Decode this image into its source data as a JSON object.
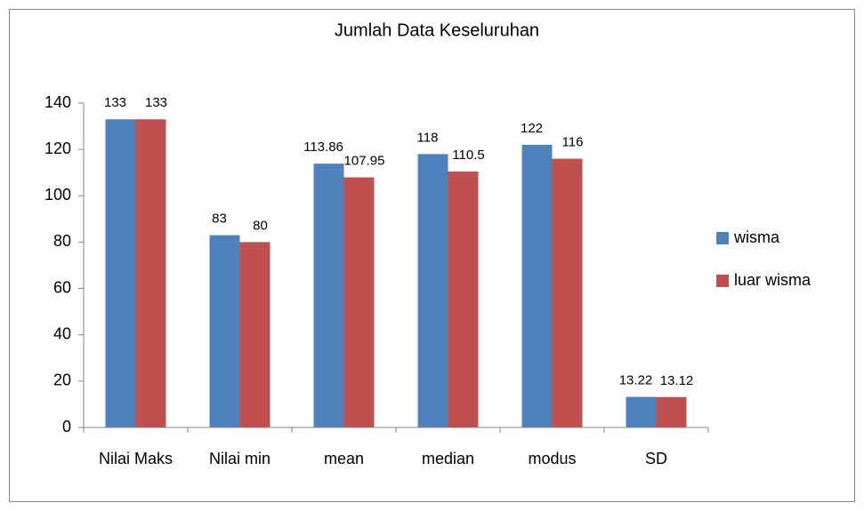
{
  "chart_data": {
    "type": "bar",
    "title": "Jumlah Data Keseluruhan",
    "categories": [
      "Nilai Maks",
      "Nilai min",
      "mean",
      "median",
      "modus",
      "SD"
    ],
    "series": [
      {
        "name": "wisma",
        "color": "#4f81bd",
        "values": [
          133,
          83,
          113.86,
          118,
          122,
          13.22
        ]
      },
      {
        "name": "luar wisma",
        "color": "#c0504d",
        "values": [
          133,
          80,
          107.95,
          110.5,
          116,
          13.12
        ]
      }
    ],
    "ylim": [
      0,
      140
    ],
    "yticks": [
      0,
      20,
      40,
      60,
      80,
      100,
      120,
      140
    ],
    "grid": false,
    "legend": "right"
  }
}
